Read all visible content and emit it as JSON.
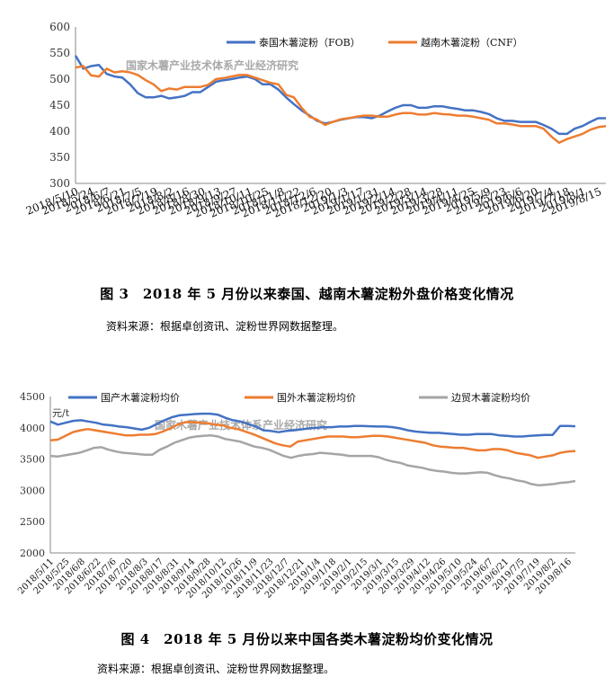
{
  "watermark": "国家木薯产业技术体系产业经济研究",
  "chart_data": [
    {
      "type": "line",
      "ylim": [
        300,
        600
      ],
      "yticks": [
        300,
        350,
        400,
        450,
        500,
        550,
        600
      ],
      "xtick_labels": [
        "2018/5/10",
        "2018/5/24",
        "2018/6/7",
        "2018/6/21",
        "2018/7/5",
        "2018/7/19",
        "2018/8/2",
        "2018/8/16",
        "2018/8/30",
        "2018/9/13",
        "2018/9/27",
        "2018/10/11",
        "2018/10/25",
        "2018/11/8",
        "2018/11/22",
        "2018/12/6",
        "2018/12/20",
        "2019/1/3",
        "2019/1/17",
        "2019/1/31",
        "2019/2/14",
        "2019/2/28",
        "2019/3/14",
        "2019/3/28",
        "2019/4/11",
        "2019/4/25",
        "2019/5/9",
        "2019/5/23",
        "2019/6/6",
        "2019/6/20",
        "2019/7/4",
        "2019/7/18",
        "2019/8/1",
        "2019/8/15"
      ],
      "legend_position": "top-right",
      "series": [
        {
          "name": "泰国木薯淀粉（FOB）",
          "color": "#4472C4",
          "values": [
            545,
            520,
            525,
            527,
            510,
            505,
            503,
            490,
            473,
            465,
            465,
            468,
            463,
            465,
            468,
            475,
            475,
            485,
            495,
            498,
            500,
            503,
            505,
            500,
            490,
            490,
            480,
            465,
            452,
            440,
            430,
            420,
            415,
            418,
            422,
            425,
            427,
            427,
            425,
            430,
            438,
            445,
            450,
            450,
            445,
            445,
            448,
            448,
            445,
            443,
            440,
            440,
            437,
            433,
            425,
            420,
            420,
            418,
            418,
            418,
            412,
            405,
            395,
            395,
            405,
            410,
            418,
            425,
            425
          ]
        },
        {
          "name": "越南木薯淀粉（CNF）",
          "color": "#ED7D31",
          "values": [
            522,
            525,
            507,
            505,
            520,
            513,
            515,
            513,
            508,
            498,
            490,
            477,
            482,
            480,
            485,
            485,
            485,
            489,
            500,
            502,
            505,
            508,
            508,
            503,
            498,
            493,
            490,
            470,
            465,
            445,
            428,
            422,
            412,
            418,
            423,
            425,
            428,
            430,
            430,
            428,
            428,
            432,
            435,
            435,
            432,
            432,
            435,
            433,
            432,
            430,
            430,
            428,
            425,
            422,
            415,
            415,
            413,
            410,
            410,
            410,
            405,
            390,
            378,
            385,
            390,
            395,
            403,
            408,
            410
          ]
        }
      ]
    },
    {
      "type": "line",
      "ylabel": "元/t",
      "ylim": [
        2000,
        4500
      ],
      "yticks": [
        2000,
        2500,
        3000,
        3500,
        4000,
        4500
      ],
      "xtick_labels": [
        "2018/5/11",
        "2018/5/25",
        "2018/6/8",
        "2018/6/22",
        "2018/7/6",
        "2018/7/20",
        "2018/8/3",
        "2018/8/17",
        "2018/8/31",
        "2018/9/14",
        "2018/9/28",
        "2018/10/12",
        "2018/10/26",
        "2018/11/9",
        "2018/11/23",
        "2018/12/7",
        "2018/12/21",
        "2019/1/4",
        "2019/1/18",
        "2019/2/1",
        "2019/2/15",
        "2019/3/1",
        "2019/3/15",
        "2019/3/29",
        "2019/4/12",
        "2019/4/26",
        "2019/5/10",
        "2019/5/24",
        "2019/6/7",
        "2019/6/21",
        "2019/7/5",
        "2019/7/19",
        "2019/8/2",
        "2019/8/16"
      ],
      "legend_position": "top",
      "series": [
        {
          "name": "国产木薯淀粉均价",
          "color": "#4472C4",
          "values": [
            4100,
            4050,
            4080,
            4110,
            4120,
            4100,
            4080,
            4050,
            4040,
            4020,
            4010,
            3990,
            3970,
            4000,
            4060,
            4120,
            4170,
            4200,
            4210,
            4220,
            4225,
            4225,
            4210,
            4160,
            4120,
            4100,
            4060,
            4020,
            3960,
            3950,
            3930,
            3950,
            3960,
            3975,
            3990,
            4000,
            4010,
            4010,
            4020,
            4020,
            4030,
            4030,
            4025,
            4020,
            4020,
            4010,
            3990,
            3960,
            3940,
            3930,
            3920,
            3920,
            3910,
            3900,
            3890,
            3890,
            3900,
            3900,
            3900,
            3880,
            3870,
            3860,
            3860,
            3870,
            3880,
            3885,
            3885,
            4030,
            4030,
            4025
          ]
        },
        {
          "name": "国外木薯淀粉均价",
          "color": "#ED7D31",
          "values": [
            3800,
            3810,
            3870,
            3930,
            3960,
            3980,
            3960,
            3940,
            3920,
            3900,
            3880,
            3880,
            3890,
            3890,
            3900,
            3940,
            3990,
            4050,
            4090,
            4090,
            4080,
            4070,
            4050,
            4040,
            4000,
            3980,
            3940,
            3900,
            3850,
            3800,
            3750,
            3720,
            3700,
            3780,
            3800,
            3820,
            3840,
            3860,
            3860,
            3860,
            3850,
            3850,
            3860,
            3870,
            3870,
            3860,
            3840,
            3820,
            3800,
            3780,
            3760,
            3720,
            3700,
            3690,
            3680,
            3680,
            3660,
            3640,
            3640,
            3660,
            3660,
            3640,
            3600,
            3580,
            3560,
            3520,
            3540,
            3560,
            3600,
            3620,
            3630
          ]
        },
        {
          "name": "边贸木薯淀粉均价",
          "color": "#A5A5A5",
          "values": [
            3550,
            3540,
            3560,
            3580,
            3600,
            3640,
            3680,
            3690,
            3650,
            3620,
            3600,
            3590,
            3580,
            3570,
            3570,
            3650,
            3700,
            3760,
            3800,
            3840,
            3860,
            3870,
            3880,
            3860,
            3820,
            3800,
            3780,
            3740,
            3700,
            3680,
            3650,
            3600,
            3550,
            3520,
            3550,
            3570,
            3580,
            3600,
            3590,
            3580,
            3570,
            3550,
            3550,
            3550,
            3550,
            3530,
            3490,
            3460,
            3440,
            3400,
            3380,
            3360,
            3330,
            3310,
            3300,
            3280,
            3270,
            3270,
            3280,
            3290,
            3280,
            3240,
            3210,
            3190,
            3160,
            3140,
            3100,
            3080,
            3090,
            3100,
            3120,
            3130,
            3150
          ]
        }
      ]
    }
  ],
  "captions": {
    "fig3_title": "图 3　2018 年 5 月份以来泰国、越南木薯淀粉外盘价格变化情况",
    "fig3_source": "资料来源：根据卓创资讯、淀粉世界网数据整理。",
    "fig4_title": "图 4　2018 年 5 月份以来中国各类木薯淀粉均价变化情况",
    "fig4_source": "资料来源：根据卓创资讯、淀粉世界网数据整理。"
  }
}
